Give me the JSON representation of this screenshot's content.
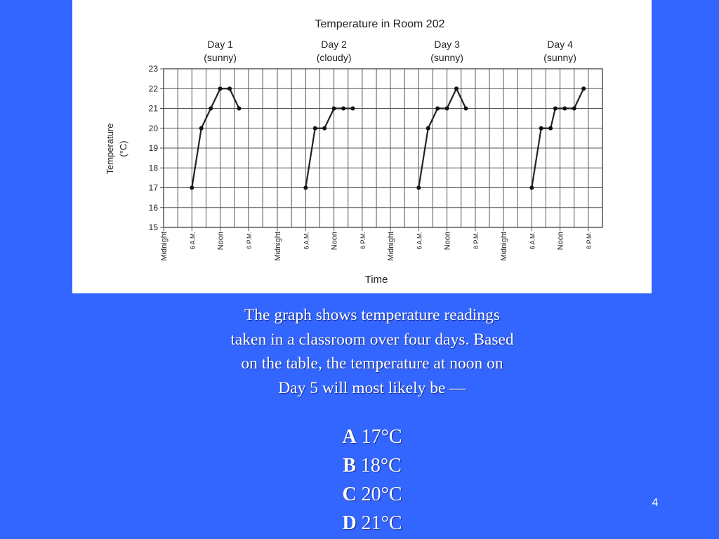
{
  "slide": {
    "question": "The graph shows temperature readings taken in a classroom over four days. Based on the table, the temperature at noon on Day 5 will most likely be —",
    "question_lines": [
      "The graph shows temperature readings",
      "taken in a classroom over four days. Based",
      "on the table, the temperature at noon on",
      "Day 5 will most likely be —"
    ],
    "choices": [
      {
        "letter": "A",
        "text": "17°C"
      },
      {
        "letter": "B",
        "text": "18°C"
      },
      {
        "letter": "C",
        "text": "20°C"
      },
      {
        "letter": "D",
        "text": "21°C"
      }
    ],
    "slide_number": "4",
    "colors": {
      "background": "#3366ff",
      "panel": "#ffffff",
      "line": "#222222",
      "grid": "#555555"
    }
  },
  "chart_data": {
    "type": "line",
    "title": "Temperature in Room 202",
    "xlabel": "Time",
    "ylabel": "Temperature",
    "ylabel_unit": "(°C)",
    "ylim": [
      15,
      23
    ],
    "yticks": [
      15,
      16,
      17,
      18,
      19,
      20,
      21,
      22,
      23
    ],
    "grid": true,
    "x_units": "hours since midnight of each day",
    "xlim_per_day": [
      0,
      21
    ],
    "x_tick_labels": [
      {
        "hour": 0,
        "label": "Midnight",
        "small": false
      },
      {
        "hour": 6,
        "label": "6 A.M.",
        "small": true
      },
      {
        "hour": 12,
        "label": "Noon",
        "small": false
      },
      {
        "hour": 18,
        "label": "6 P.M.",
        "small": true
      }
    ],
    "days": [
      {
        "name": "Day 1",
        "condition": "(sunny)",
        "points": [
          [
            6,
            17
          ],
          [
            8,
            20
          ],
          [
            10,
            21
          ],
          [
            12,
            22
          ],
          [
            14,
            22
          ],
          [
            16,
            21
          ]
        ]
      },
      {
        "name": "Day 2",
        "condition": "(cloudy)",
        "points": [
          [
            6,
            17
          ],
          [
            8,
            20
          ],
          [
            10,
            20
          ],
          [
            12,
            21
          ],
          [
            14,
            21
          ],
          [
            16,
            21
          ]
        ]
      },
      {
        "name": "Day 3",
        "condition": "(sunny)",
        "points": [
          [
            6,
            17
          ],
          [
            8,
            20
          ],
          [
            10,
            21
          ],
          [
            12,
            21
          ],
          [
            14,
            22
          ],
          [
            16,
            21
          ]
        ]
      },
      {
        "name": "Day 4",
        "condition": "(sunny)",
        "points": [
          [
            6,
            17
          ],
          [
            8,
            20
          ],
          [
            10,
            20
          ],
          [
            11,
            21
          ],
          [
            13,
            21
          ],
          [
            15,
            21
          ],
          [
            17,
            22
          ]
        ]
      }
    ]
  }
}
